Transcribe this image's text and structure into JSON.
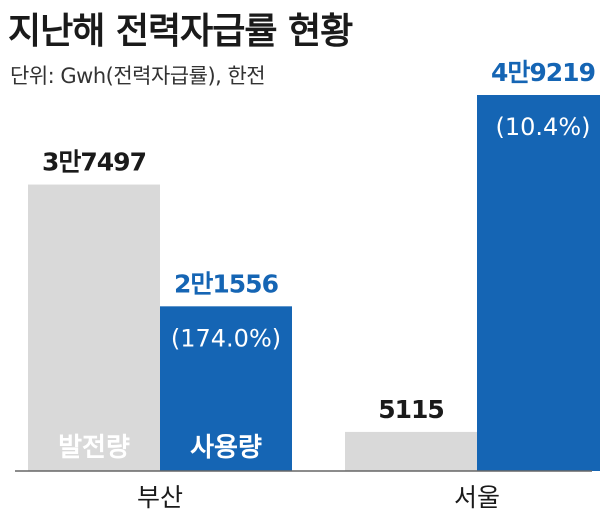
{
  "title": "지난해 전력자급률 현황",
  "subtitle": "단위: Gwh(전력자급률), 한전",
  "colors": {
    "generation": "#d9d9d9",
    "consumption": "#1565b4",
    "value_label_dark": "#1a1a1a",
    "value_label_blue": "#1565b4",
    "inner_text": "#ffffff"
  },
  "chart_data": {
    "type": "bar",
    "title": "지난해 전력자급률 현황",
    "unit": "단위: Gwh(전력자급률)",
    "source": "한전",
    "categories": [
      "부산",
      "서울"
    ],
    "series": [
      {
        "name": "발전량",
        "values": [
          37497,
          5115
        ],
        "labels": [
          "3만7497",
          "5115"
        ]
      },
      {
        "name": "사용량",
        "values": [
          21556,
          49219
        ],
        "labels": [
          "2만1556",
          "4만9219"
        ],
        "self_sufficiency": [
          "(174.0%)",
          "(10.4%)"
        ]
      }
    ],
    "ylim": [
      0,
      49219
    ],
    "grid": false,
    "legend": "inside-bars"
  }
}
